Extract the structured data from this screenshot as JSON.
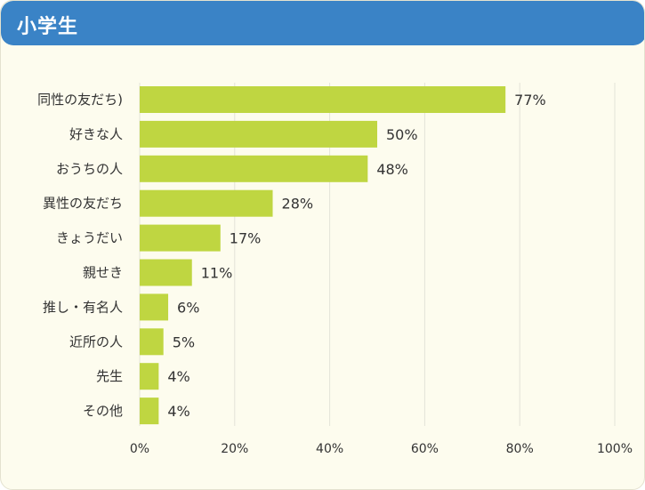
{
  "header": {
    "title": "小学生"
  },
  "colors": {
    "header_bg": "#3a83c6",
    "background": "#fdfcee",
    "bar": "#bfd641",
    "grid": "#e3e3d8"
  },
  "chart_data": {
    "type": "bar",
    "orientation": "horizontal",
    "title": "",
    "xlabel": "",
    "ylabel": "",
    "xlim": [
      0,
      100
    ],
    "grid": true,
    "ticks": [
      "0%",
      "20%",
      "40%",
      "60%",
      "80%",
      "100%"
    ],
    "categories": [
      "同性の友だち)",
      "好きな人",
      "おうちの人",
      "異性の友だち",
      "きょうだい",
      "親せき",
      "推し・有名人",
      "近所の人",
      "先生",
      "その他"
    ],
    "values": [
      77,
      50,
      48,
      28,
      17,
      11,
      6,
      5,
      4,
      4
    ],
    "value_labels": [
      "77%",
      "50%",
      "48%",
      "28%",
      "17%",
      "11%",
      "6%",
      "5%",
      "4%",
      "4%"
    ]
  }
}
